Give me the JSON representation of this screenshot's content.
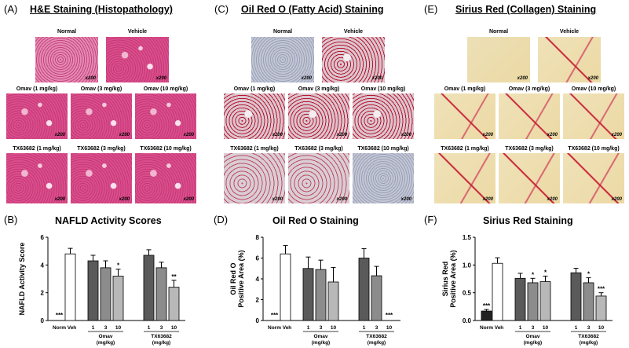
{
  "panels": [
    {
      "letter": "(A)",
      "title": "H&E Staining (Histopathology)"
    },
    {
      "letter": "(C)",
      "title": "Oil Red O (Fatty Acid) Staining"
    },
    {
      "letter": "(E)",
      "title": "Sirius Red (Collagen) Staining"
    }
  ],
  "image_labels": {
    "normal": "Normal",
    "vehicle": "Vehicle",
    "omav1": "Omav (1 mg/kg)",
    "omav3": "Omav (3 mg/kg)",
    "omav10": "Omav (10 mg/kg)",
    "tx1": "TX63682 (1 mg/kg)",
    "tx3": "TX63682 (3 mg/kg)",
    "tx10": "TX63682 (10 mg/kg)",
    "magnification": "x200"
  },
  "stain_colors": {
    "he": "#d94f8a",
    "he_light": "#f2b6d0",
    "oro": "#c9b9c9",
    "oro_dot": "#b5182c",
    "sirius": "#ecd9a4",
    "sirius_line": "#c8253a"
  },
  "chart_letters": [
    "(B)",
    "(D)",
    "(F)"
  ],
  "group_labels": {
    "omav": "Omav",
    "tx": "TX63682",
    "unit": "(mg/kg)",
    "norm": "Norm",
    "veh": "Veh",
    "doses": [
      "1",
      "3",
      "10"
    ]
  },
  "chart_data": [
    {
      "type": "bar",
      "title": "NAFLD Activity Scores",
      "ylabel": "NAFLD Activity Score",
      "ylim": [
        0,
        6
      ],
      "yticks": [
        "0",
        "2",
        "4",
        "6"
      ],
      "categories": [
        "Norm",
        "Veh",
        "Omav 1",
        "Omav 3",
        "Omav 10",
        "TX63682 1",
        "TX63682 3",
        "TX63682 10"
      ],
      "values": [
        0,
        4.8,
        4.3,
        3.8,
        3.2,
        4.7,
        3.8,
        2.4
      ],
      "errors": [
        0,
        0.4,
        0.4,
        0.5,
        0.5,
        0.4,
        0.4,
        0.5
      ],
      "significance": [
        "***",
        "",
        "",
        "",
        "*",
        "",
        "",
        "**"
      ],
      "colors": [
        "#ffffff",
        "#ffffff",
        "#5a5a5a",
        "#8c8c8c",
        "#b8b8b8",
        "#5a5a5a",
        "#8c8c8c",
        "#b8b8b8"
      ]
    },
    {
      "type": "bar",
      "title": "Oil Red O Staining",
      "ylabel": "Oil Red O Positive Area (%)",
      "ylabel_lines": [
        "Oil Red O",
        "Positive Area (%)"
      ],
      "ylim": [
        0,
        8
      ],
      "yticks": [
        "0",
        "2",
        "4",
        "6",
        "8"
      ],
      "categories": [
        "Norm",
        "Veh",
        "Omav 1",
        "Omav 3",
        "Omav 10",
        "TX63682 1",
        "TX63682 3",
        "TX63682 10"
      ],
      "values": [
        0,
        6.4,
        5.0,
        4.9,
        3.7,
        6.0,
        4.3,
        0
      ],
      "errors": [
        0,
        0.8,
        1.1,
        0.9,
        1.4,
        0.9,
        0.9,
        0
      ],
      "significance": [
        "***",
        "",
        "",
        "",
        "",
        "",
        "",
        "***"
      ],
      "colors": [
        "#ffffff",
        "#ffffff",
        "#5a5a5a",
        "#8c8c8c",
        "#b8b8b8",
        "#5a5a5a",
        "#8c8c8c",
        "#b8b8b8"
      ]
    },
    {
      "type": "bar",
      "title": "Sirius Red Staining",
      "ylabel": "Sirius Red Positive Area (%)",
      "ylabel_lines": [
        "Sirius Red",
        "Positive Area (%)"
      ],
      "ylim": [
        0,
        1.5
      ],
      "yticks": [
        "0.0",
        "0.5",
        "1.0",
        "1.5"
      ],
      "categories": [
        "Norm",
        "Veh",
        "Omav 1",
        "Omav 3",
        "Omav 10",
        "TX63682 1",
        "TX63682 3",
        "TX63682 10"
      ],
      "values": [
        0.17,
        1.03,
        0.76,
        0.68,
        0.7,
        0.86,
        0.68,
        0.44
      ],
      "errors": [
        0.03,
        0.1,
        0.09,
        0.08,
        0.1,
        0.08,
        0.09,
        0.06
      ],
      "significance": [
        "***",
        "",
        "",
        "*",
        "*",
        "",
        "*",
        "***"
      ],
      "colors": [
        "#222222",
        "#ffffff",
        "#5a5a5a",
        "#8c8c8c",
        "#b8b8b8",
        "#5a5a5a",
        "#8c8c8c",
        "#b8b8b8"
      ]
    }
  ]
}
